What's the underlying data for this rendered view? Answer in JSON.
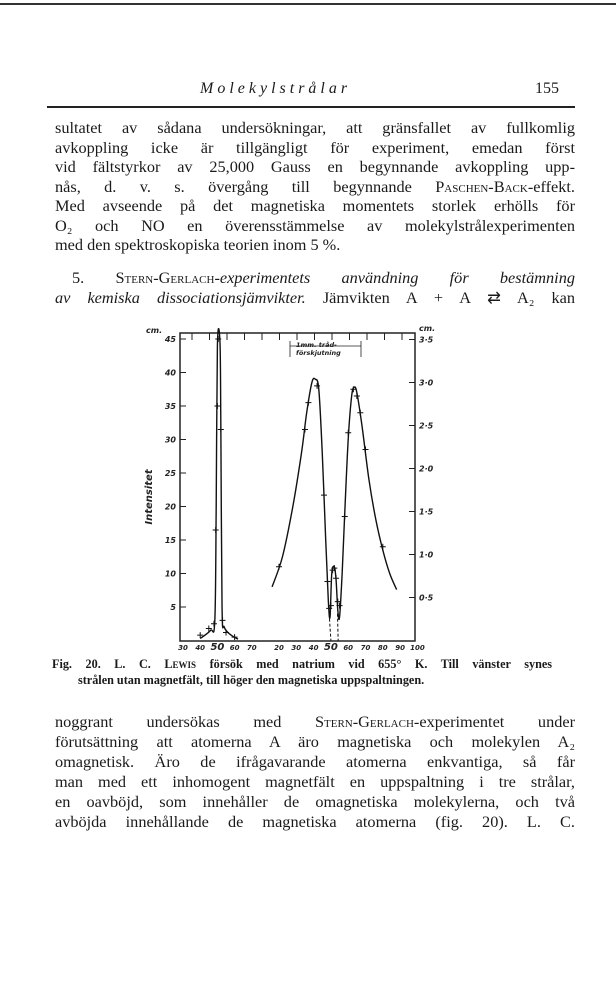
{
  "header": {
    "running_title": "Molekylstrålar",
    "page_number": "155"
  },
  "paragraph1": [
    [
      {
        "t": "sultatet av sådana undersökningar, att gränsfallet av fullkomlig"
      }
    ],
    [
      {
        "t": "avkoppling icke är tillgängligt för experiment, emedan först"
      }
    ],
    [
      {
        "t": "vid fältstyrkor av 25,000 Gauss en begynnande avkoppling upp-"
      }
    ],
    [
      {
        "t": "nås, d. v. s. övergång till begynnande "
      },
      {
        "t": "Paschen-Back",
        "s": "sc"
      },
      {
        "t": "-effekt."
      }
    ],
    [
      {
        "t": "Med avseende på det magnetiska momentets storlek erhölls för"
      }
    ],
    [
      {
        "t": "O₂ och NO en överensstämmelse av molekylstrålexperimenten"
      }
    ],
    [
      {
        "t": "med den spektroskopiska teorien inom 5 %."
      }
    ]
  ],
  "section": [
    [
      {
        "t": "5. "
      },
      {
        "t": "Stern-Gerlach",
        "s": "sc"
      },
      {
        "t": "-experimentets användning för bestämning",
        "s": "it"
      }
    ],
    [
      {
        "t": "av kemiska dissociationsjämvikter.",
        "s": "it"
      },
      {
        "t": " Jämvikten A + A ⇄ A₂ kan"
      }
    ]
  ],
  "figure": {
    "caption_line1": [
      {
        "t": "Fig. 20. L. C. "
      },
      {
        "t": "Lewis",
        "s": "sc"
      },
      {
        "t": " försök med natrium vid 655° K. Till vänster synes"
      }
    ],
    "caption_line2": [
      {
        "t": "strålen utan magnetfält, till höger den magnetiska uppspaltningen."
      }
    ]
  },
  "paragraph2": [
    [
      {
        "t": "noggrant undersökas med "
      },
      {
        "t": "Stern-Gerlach",
        "s": "sc"
      },
      {
        "t": "-experimentet under"
      }
    ],
    [
      {
        "t": "förutsättning att atomerna A äro magnetiska och molekylen A₂"
      }
    ],
    [
      {
        "t": "omagnetisk. Äro de ifrågavarande atomerna enkvantiga, så får"
      }
    ],
    [
      {
        "t": "man med ett inhomogent magnetfält en uppspaltning i tre strålar,"
      }
    ],
    [
      {
        "t": "en oavböjd, som innehåller de omagnetiska molekylerna, och två"
      }
    ],
    [
      {
        "t": "avböjda innehållande de magnetiska atomerna (fig. 20). L. C."
      }
    ]
  ],
  "chart_data": {
    "type": "line",
    "ylabel": "Intensitet",
    "y_unit_left": "cm.",
    "y_unit_right": "cm.",
    "annotation": [
      "1mm. tråd-",
      "förskjutning"
    ],
    "ylim_left": [
      0,
      46
    ],
    "yticks_left": [
      5,
      10,
      15,
      20,
      25,
      30,
      35,
      40,
      45
    ],
    "ylim_right": [
      0,
      3.6
    ],
    "yticks_right": [
      "0·5",
      "1·0",
      "1·5",
      "2·0",
      "2·5",
      "3·0",
      "3·5"
    ],
    "yticks_right_values": [
      0.5,
      1.0,
      1.5,
      2.0,
      2.5,
      3.0,
      3.5
    ],
    "xticks_left": [
      30,
      40,
      50,
      60,
      70
    ],
    "xticks_right": [
      20,
      30,
      40,
      50,
      60,
      70,
      80,
      90,
      100
    ],
    "grid": false,
    "series": [
      {
        "panel": "left",
        "points": [
          [
            40,
            0.8
          ],
          [
            45,
            1.8
          ],
          [
            48,
            2.5
          ],
          [
            49,
            16.5
          ],
          [
            50,
            35
          ],
          [
            50.5,
            45
          ],
          [
            52,
            31.5
          ],
          [
            53,
            3
          ],
          [
            55,
            1.2
          ],
          [
            60,
            0.5
          ]
        ],
        "curve": [
          [
            40,
            0.3
          ],
          [
            46,
            1.5
          ],
          [
            48.5,
            3
          ],
          [
            49.3,
            20
          ],
          [
            50,
            44
          ],
          [
            51.5,
            44.5
          ],
          [
            52,
            32
          ],
          [
            52.7,
            5
          ],
          [
            54,
            2
          ],
          [
            58,
            0.8
          ],
          [
            62,
            0.2
          ]
        ]
      },
      {
        "panel": "right",
        "points": [
          [
            20,
            11
          ],
          [
            35,
            31.5
          ],
          [
            37,
            35.5
          ],
          [
            42,
            38
          ],
          [
            46,
            21.7
          ],
          [
            48,
            8.8
          ],
          [
            49,
            4.8
          ],
          [
            50,
            5.2
          ],
          [
            51,
            10.5
          ],
          [
            52,
            10.8
          ],
          [
            53,
            9.3
          ],
          [
            54,
            5.8
          ],
          [
            55,
            5.2
          ],
          [
            58,
            18.5
          ],
          [
            60,
            31
          ],
          [
            63,
            37.5
          ],
          [
            65,
            36.5
          ],
          [
            67,
            34
          ],
          [
            70,
            28.5
          ],
          [
            80,
            14
          ]
        ],
        "curve": [
          [
            16,
            8
          ],
          [
            22,
            12.5
          ],
          [
            28,
            20
          ],
          [
            33,
            28
          ],
          [
            36,
            34
          ],
          [
            39,
            38.5
          ],
          [
            41,
            39
          ],
          [
            43,
            37.5
          ],
          [
            45,
            28
          ],
          [
            47,
            15
          ],
          [
            48.5,
            6
          ],
          [
            49.5,
            3.5
          ],
          [
            50.5,
            10
          ],
          [
            52,
            11
          ],
          [
            53,
            9
          ],
          [
            54,
            4.5
          ],
          [
            55,
            3.5
          ],
          [
            56.5,
            10
          ],
          [
            58,
            19
          ],
          [
            60,
            30
          ],
          [
            62,
            36.5
          ],
          [
            63.5,
            37.8
          ],
          [
            65,
            37
          ],
          [
            68,
            32
          ],
          [
            72,
            24
          ],
          [
            76,
            18
          ],
          [
            80,
            13.5
          ],
          [
            84,
            10
          ],
          [
            88,
            7.6
          ]
        ],
        "dashed": [
          [
            [
              49,
              4
            ],
            [
              50,
              0
            ]
          ],
          [
            [
              53.8,
              4
            ],
            [
              54.2,
              0
            ]
          ]
        ]
      }
    ]
  }
}
